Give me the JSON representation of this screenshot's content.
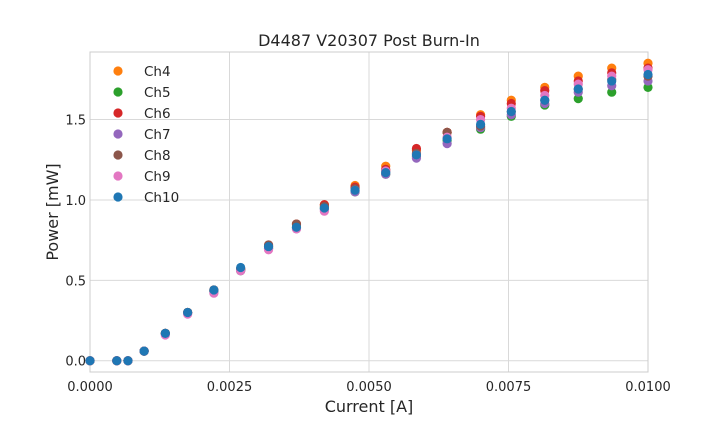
{
  "chart_data": {
    "type": "scatter",
    "title": "D4487 V20307 Post Burn-In",
    "xlabel": "Current [A]",
    "ylabel": "Power [mW]",
    "xlim": [
      0.0,
      0.01
    ],
    "ylim": [
      -0.07,
      1.92
    ],
    "x_ticks": [
      0.0,
      0.0025,
      0.005,
      0.0075,
      0.01
    ],
    "x_tick_labels": [
      "0.0000",
      "0.0025",
      "0.0050",
      "0.0075",
      "0.0100"
    ],
    "y_ticks": [
      0.0,
      0.5,
      1.0,
      1.5
    ],
    "y_tick_labels": [
      "0.0",
      "0.5",
      "1.0",
      "1.5"
    ],
    "grid": true,
    "legend_position": "top-left",
    "x": [
      0.0,
      0.00048,
      0.00068,
      0.00097,
      0.00135,
      0.00175,
      0.00222,
      0.0027,
      0.0032,
      0.0037,
      0.0042,
      0.00475,
      0.0053,
      0.00585,
      0.0064,
      0.007,
      0.00755,
      0.00815,
      0.00875,
      0.00935,
      0.01
    ],
    "series": [
      {
        "name": "Ch4",
        "color": "#ff7f0e",
        "values": [
          0.0,
          0.0,
          0.0,
          0.06,
          0.17,
          0.3,
          0.44,
          0.57,
          0.71,
          0.85,
          0.97,
          1.09,
          1.21,
          1.31,
          1.42,
          1.53,
          1.62,
          1.7,
          1.77,
          1.82,
          1.85
        ]
      },
      {
        "name": "Ch5",
        "color": "#2ca02c",
        "values": [
          0.0,
          0.0,
          0.0,
          0.06,
          0.17,
          0.3,
          0.43,
          0.56,
          0.7,
          0.83,
          0.95,
          1.05,
          1.16,
          1.27,
          1.37,
          1.44,
          1.52,
          1.59,
          1.63,
          1.67,
          1.7
        ]
      },
      {
        "name": "Ch6",
        "color": "#d62728",
        "values": [
          0.0,
          0.0,
          0.0,
          0.06,
          0.17,
          0.3,
          0.44,
          0.57,
          0.72,
          0.85,
          0.97,
          1.08,
          1.19,
          1.32,
          1.42,
          1.52,
          1.6,
          1.68,
          1.74,
          1.79,
          1.82
        ]
      },
      {
        "name": "Ch7",
        "color": "#9467bd",
        "values": [
          0.0,
          0.0,
          0.0,
          0.06,
          0.17,
          0.3,
          0.43,
          0.56,
          0.7,
          0.82,
          0.94,
          1.05,
          1.16,
          1.26,
          1.35,
          1.45,
          1.53,
          1.6,
          1.67,
          1.71,
          1.74
        ]
      },
      {
        "name": "Ch8",
        "color": "#8c564b",
        "values": [
          0.0,
          0.0,
          0.0,
          0.06,
          0.17,
          0.3,
          0.44,
          0.57,
          0.72,
          0.85,
          0.96,
          1.07,
          1.18,
          1.29,
          1.42,
          1.46,
          1.55,
          1.62,
          1.69,
          1.75,
          1.77
        ]
      },
      {
        "name": "Ch9",
        "color": "#e377c2",
        "values": [
          0.0,
          0.0,
          0.0,
          0.06,
          0.16,
          0.29,
          0.42,
          0.56,
          0.69,
          0.82,
          0.93,
          1.06,
          1.18,
          1.28,
          1.39,
          1.5,
          1.57,
          1.65,
          1.72,
          1.77,
          1.81
        ]
      },
      {
        "name": "Ch10",
        "color": "#1f77b4",
        "values": [
          0.0,
          0.0,
          0.0,
          0.06,
          0.17,
          0.3,
          0.44,
          0.58,
          0.71,
          0.83,
          0.95,
          1.06,
          1.17,
          1.28,
          1.38,
          1.47,
          1.55,
          1.62,
          1.69,
          1.74,
          1.78
        ]
      }
    ]
  }
}
